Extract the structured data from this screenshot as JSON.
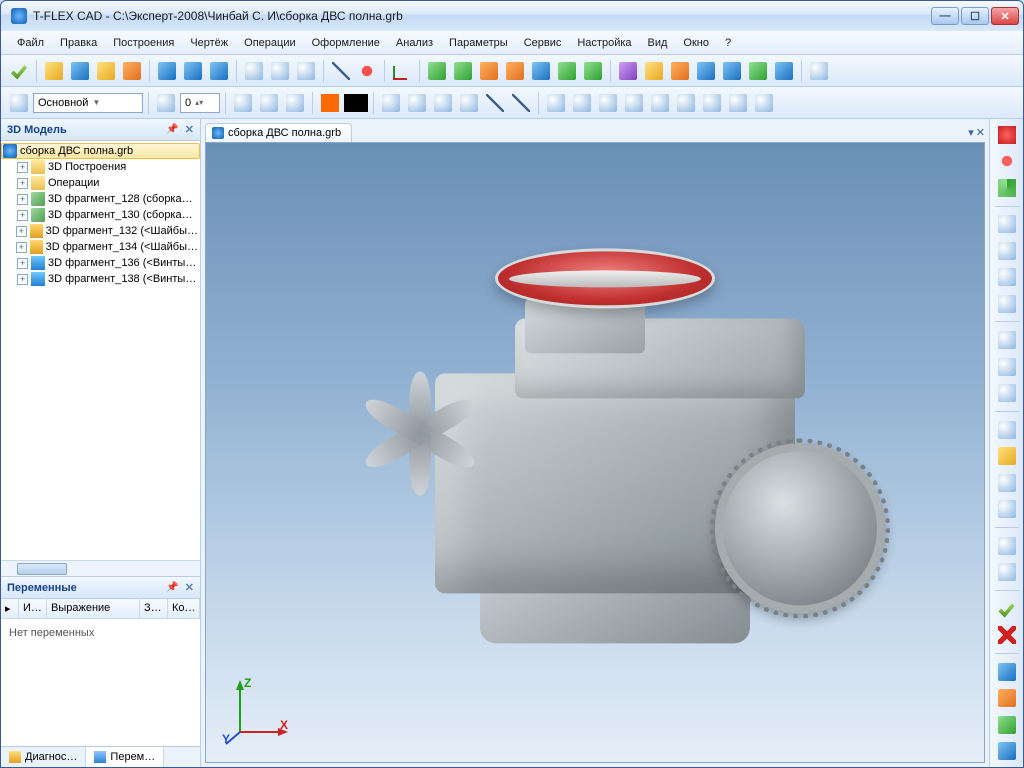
{
  "window": {
    "title": "T-FLEX CAD  -  С:\\Эксперт-2008\\Чинбай С. И\\сборка ДВС полна.grb"
  },
  "menu": {
    "items": [
      "Файл",
      "Правка",
      "Построения",
      "Чертёж",
      "Операции",
      "Оформление",
      "Анализ",
      "Параметры",
      "Сервис",
      "Настройка",
      "Вид",
      "Окно",
      "?"
    ]
  },
  "toolbar2": {
    "layer_label": "Основной",
    "spin_value": "0"
  },
  "leftPanel": {
    "title": "3D Модель",
    "root": "сборка ДВС полна.grb",
    "nodes": [
      "3D Построения",
      "Операции",
      "3D фрагмент_128 (сборка…",
      "3D фрагмент_130 (сборка…",
      "3D фрагмент_132 (<Шайбы…",
      "3D фрагмент_134 (<Шайбы…",
      "3D фрагмент_136 (<Винты…",
      "3D фрагмент_138 (<Винты…"
    ],
    "varsTitle": "Переменные",
    "varsCols": [
      "И…",
      "Выражение",
      "З…",
      "Ко…"
    ],
    "noVars": "Нет переменных",
    "tabs": [
      "Диагнос…",
      "Перем…"
    ]
  },
  "document": {
    "tab": "сборка ДВС полна.grb"
  },
  "viewport": {
    "bg_gradient": [
      "#6a8fb5",
      "#e6eef8"
    ],
    "axes": {
      "z": "Z",
      "x": "X",
      "y": "Y",
      "z_color": "#1aa01a",
      "x_color": "#d02020",
      "y_color": "#2050d0"
    },
    "engine_colors": {
      "body": "#a8b0b4",
      "air_filter": "#c03030",
      "metal_light": "#d5dadd"
    }
  },
  "colors": {
    "chrome_bg": "#dce9fa",
    "border": "#b8cde8",
    "accent": "#15428b"
  }
}
